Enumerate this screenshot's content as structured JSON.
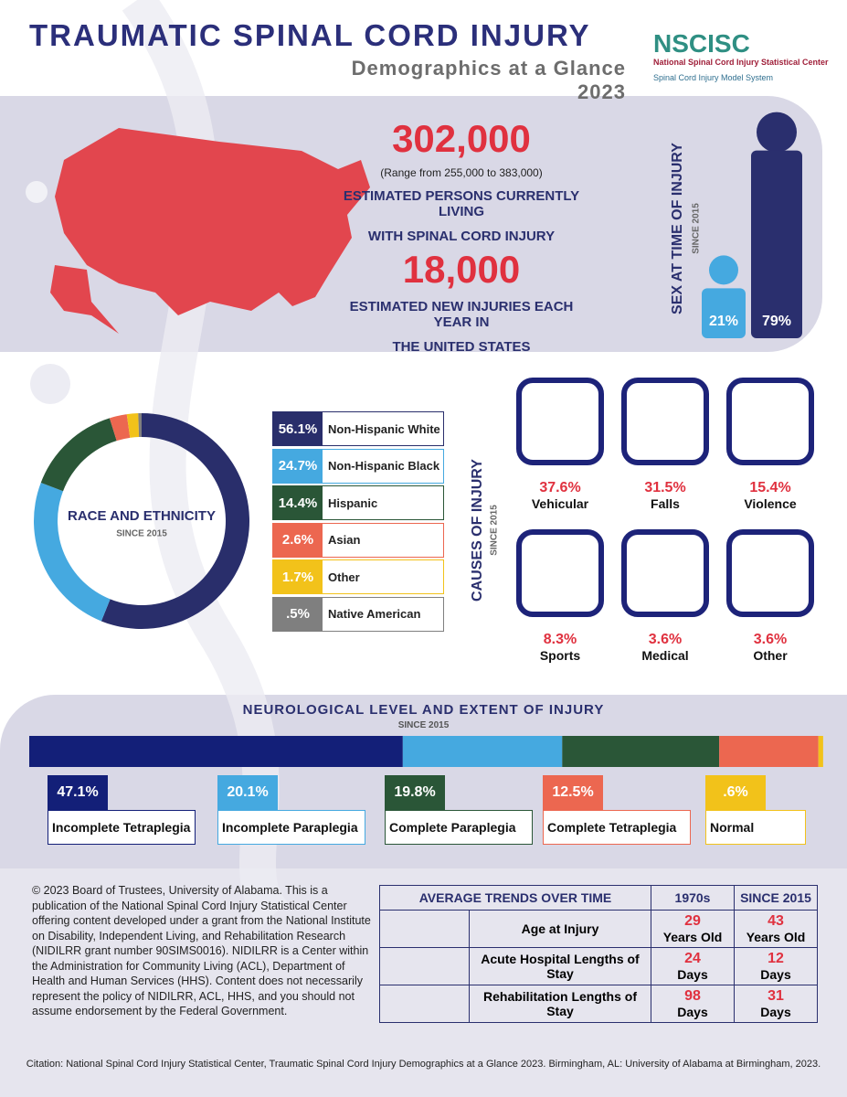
{
  "header": {
    "title": "TRAUMATIC SPINAL CORD INJURY",
    "subtitle": "Demographics at a Glance 2023",
    "logo": "NSCISC",
    "logo_name": "National Spinal Cord Injury Statistical Center",
    "logo_tagline": "Spinal Cord Injury Model System"
  },
  "prevalence": {
    "count": "302,000",
    "range": "(Range from 255,000 to 383,000)",
    "label_1": "ESTIMATED PERSONS CURRENTLY LIVING",
    "label_2": "WITH SPINAL CORD INJURY",
    "incidence": "18,000",
    "incidence_label_1": "ESTIMATED NEW INJURIES EACH YEAR IN",
    "incidence_label_2": "THE UNITED STATES"
  },
  "sex": {
    "title": "SEX AT TIME OF INJURY",
    "subtitle": "SINCE 2015",
    "values": [
      21,
      79
    ],
    "value_labels": [
      "21%",
      "79%"
    ],
    "colors": [
      "#45a9e0",
      "#2a2f6e"
    ]
  },
  "race": {
    "title": "RACE AND ETHNICITY",
    "subtitle": "SINCE 2015",
    "categories": [
      "Non-Hispanic White",
      "Non-Hispanic Black",
      "Hispanic",
      "Asian",
      "Other",
      "Native American"
    ],
    "values": [
      56.1,
      24.7,
      14.4,
      2.6,
      1.7,
      0.5
    ],
    "value_labels": [
      "56.1%",
      "24.7%",
      "14.4%",
      "2.6%",
      "1.7%",
      ".5%"
    ],
    "colors": [
      "#292e6b",
      "#45a9e0",
      "#2a5637",
      "#ec6750",
      "#f2c21a",
      "#7f7f7f"
    ]
  },
  "causes": {
    "title": "CAUSES OF INJURY",
    "subtitle": "SINCE 2015",
    "categories": [
      "Vehicular",
      "Falls",
      "Violence",
      "Sports",
      "Medical",
      "Other"
    ],
    "labels": [
      "37.6%",
      "31.5%",
      "15.4%",
      "8.3%",
      "3.6%",
      "3.6%"
    ]
  },
  "neuro": {
    "title": "NEUROLOGICAL LEVEL AND EXTENT OF INJURY",
    "subtitle": "SINCE 2015",
    "categories": [
      "Incomplete Tetraplegia",
      "Incomplete Paraplegia",
      "Complete Paraplegia",
      "Complete Tetraplegia",
      "Normal"
    ],
    "values": [
      47.1,
      20.1,
      19.8,
      12.5,
      0.6
    ],
    "value_labels": [
      "47.1%",
      "20.1%",
      "19.8%",
      "12.5%",
      ".6%"
    ],
    "colors": [
      "#131f78",
      "#45a9e0",
      "#2a5637",
      "#ec6750",
      "#f2c21a"
    ]
  },
  "copyright": "© 2023 Board of Trustees, University of Alabama. This is a publication of the National Spinal Cord Injury Statistical Center offering content developed under a grant from the National Institute on Disability, Independent Living, and Rehabilitation Research (NIDILRR grant number 90SIMS0016). NIDILRR is a Center within the Administration for Community Living (ACL), Department of Health and Human Services (HHS). Content does not necessarily represent the policy of NIDILRR, ACL, HHS, and you should not assume endorsement by the Federal Government.",
  "trends": {
    "header": [
      "AVERAGE TRENDS OVER TIME",
      "1970s",
      "SINCE 2015"
    ],
    "rows": [
      [
        "Age at Injury",
        "29",
        "Years Old",
        "43",
        "Years Old"
      ],
      [
        "Acute Hospital Lengths of Stay",
        "24",
        "Days",
        "12",
        "Days"
      ],
      [
        "Rehabilitation Lengths of Stay",
        "98",
        "Days",
        "31",
        "Days"
      ]
    ]
  },
  "citation": "Citation: National Spinal Cord Injury Statistical Center, Traumatic Spinal Cord Injury Demographics at a Glance 2023. Birmingham, AL: University of Alabama at Birmingham, 2023."
}
